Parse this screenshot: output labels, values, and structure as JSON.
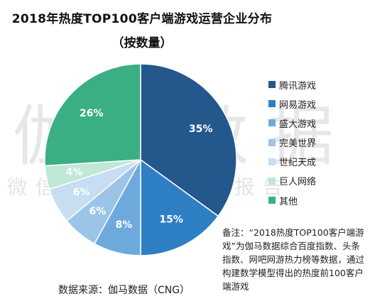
{
  "chart_data": {
    "type": "pie",
    "title": "2018年热度TOP100客户端游戏运营企业分布",
    "subtitle": "（按数量）",
    "slices": [
      {
        "name": "腾讯游戏",
        "value": 35,
        "label": "35%",
        "color": "#24578c"
      },
      {
        "name": "网易游戏",
        "value": 15,
        "label": "15%",
        "color": "#2f7fc4"
      },
      {
        "name": "盛大游戏",
        "value": 8,
        "label": "8%",
        "color": "#6ea9dd"
      },
      {
        "name": "完美世界",
        "value": 6,
        "label": "6%",
        "color": "#9bc4e8"
      },
      {
        "name": "世纪天成",
        "value": 6,
        "label": "6%",
        "color": "#c6ddf2"
      },
      {
        "name": "巨人网络",
        "value": 4,
        "label": "4%",
        "color": "#bfe8d7"
      },
      {
        "name": "其他",
        "value": 26,
        "label": "26%",
        "color": "#3aaf84"
      }
    ],
    "legend_position": "right"
  },
  "watermark": {
    "main": "伽马数据",
    "sub": "微信号：游戏产业报告"
  },
  "note": "备注：“2018热度TOP100客户端游戏”为伽马数据综合百度指数、头条指数、网吧网游热力榜等数据，通过构建数学模型得出的热度前100客户端游戏",
  "source": "数据来源：伽马数据（CNG）"
}
